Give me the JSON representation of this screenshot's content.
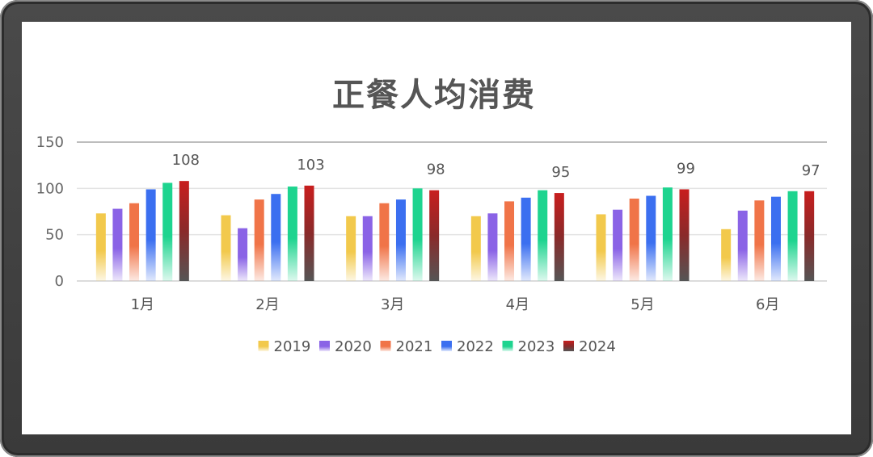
{
  "chart_data": {
    "type": "bar",
    "title": "正餐人均消费",
    "categories": [
      "1月",
      "2月",
      "3月",
      "4月",
      "5月",
      "6月"
    ],
    "ylim": [
      0,
      150
    ],
    "yticks": [
      0,
      50,
      100,
      150
    ],
    "grid": true,
    "legend": "bottom",
    "series": [
      {
        "name": "2019",
        "color": "#f2c94c",
        "values": [
          73,
          71,
          70,
          70,
          72,
          56
        ]
      },
      {
        "name": "2020",
        "color": "#8a63e6",
        "values": [
          78,
          57,
          70,
          73,
          77,
          76
        ]
      },
      {
        "name": "2021",
        "color": "#f07448",
        "values": [
          84,
          88,
          84,
          86,
          89,
          87
        ]
      },
      {
        "name": "2022",
        "color": "#3b6ff0",
        "values": [
          99,
          94,
          88,
          90,
          92,
          91
        ]
      },
      {
        "name": "2023",
        "color": "#1ed48f",
        "values": [
          106,
          102,
          100,
          98,
          101,
          97
        ]
      },
      {
        "name": "2024",
        "color": "#c81e1e",
        "values": [
          108,
          103,
          98,
          95,
          99,
          97
        ]
      }
    ],
    "data_labels_series": "2024"
  }
}
